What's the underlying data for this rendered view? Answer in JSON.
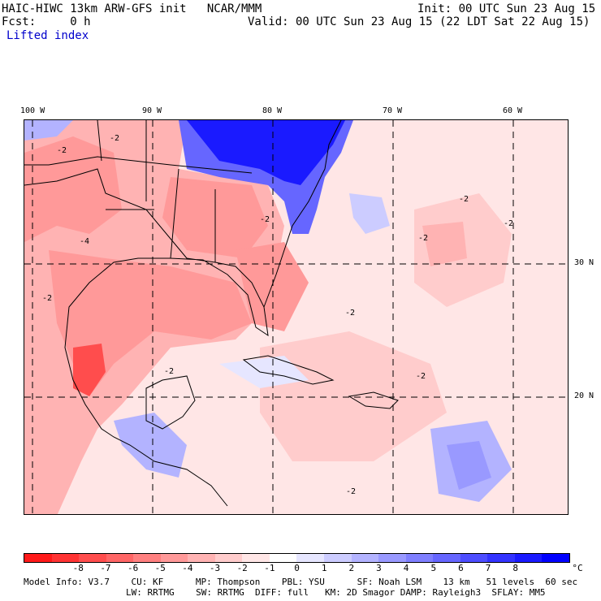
{
  "header": {
    "title_left": "HAIC-HIWC 13km ARW-GFS init   NCAR/MMM",
    "init": "Init: 00 UTC Sun 23 Aug 15",
    "fcst": "Fcst:     0 h",
    "valid": "Valid: 00 UTC Sun 23 Aug 15 (22 LDT Sat 22 Aug 15)",
    "field": "Lifted index"
  },
  "map": {
    "lon_labels": [
      "100 W",
      "90 W",
      "80 W",
      "70 W",
      "60 W"
    ],
    "lat_labels": [
      "30 N",
      "20 N"
    ],
    "contour_labels": [
      "-2",
      "-4"
    ],
    "colors": {
      "land_line": "#000000",
      "grid_line": "#000000"
    }
  },
  "colorbar": {
    "labels": [
      "-8",
      "-7",
      "-6",
      "-5",
      "-4",
      "-3",
      "-2",
      "-1",
      "0",
      "1",
      "2",
      "3",
      "4",
      "5",
      "6",
      "7",
      "8"
    ],
    "unit": "°C",
    "colors": [
      "#ff1a1a",
      "#ff3333",
      "#ff4d4d",
      "#ff6666",
      "#ff8080",
      "#ff9999",
      "#ffb3b3",
      "#ffcccc",
      "#ffe6e6",
      "#ffffff",
      "#e6e6ff",
      "#ccccff",
      "#b3b3ff",
      "#9999ff",
      "#7f7fff",
      "#6666ff",
      "#4d4dff",
      "#3333ff",
      "#1a1aff",
      "#0000ff"
    ]
  },
  "footer": {
    "line1": "Model Info: V3.7    CU: KF      MP: Thompson    PBL: YSU      SF: Noah LSM    13 km   51 levels  60 sec",
    "line2": "LW: RRTMG    SW: RRTMG  DIFF: full   KM: 2D Smagor DAMP: Rayleigh3  SFLAY: MM5"
  }
}
